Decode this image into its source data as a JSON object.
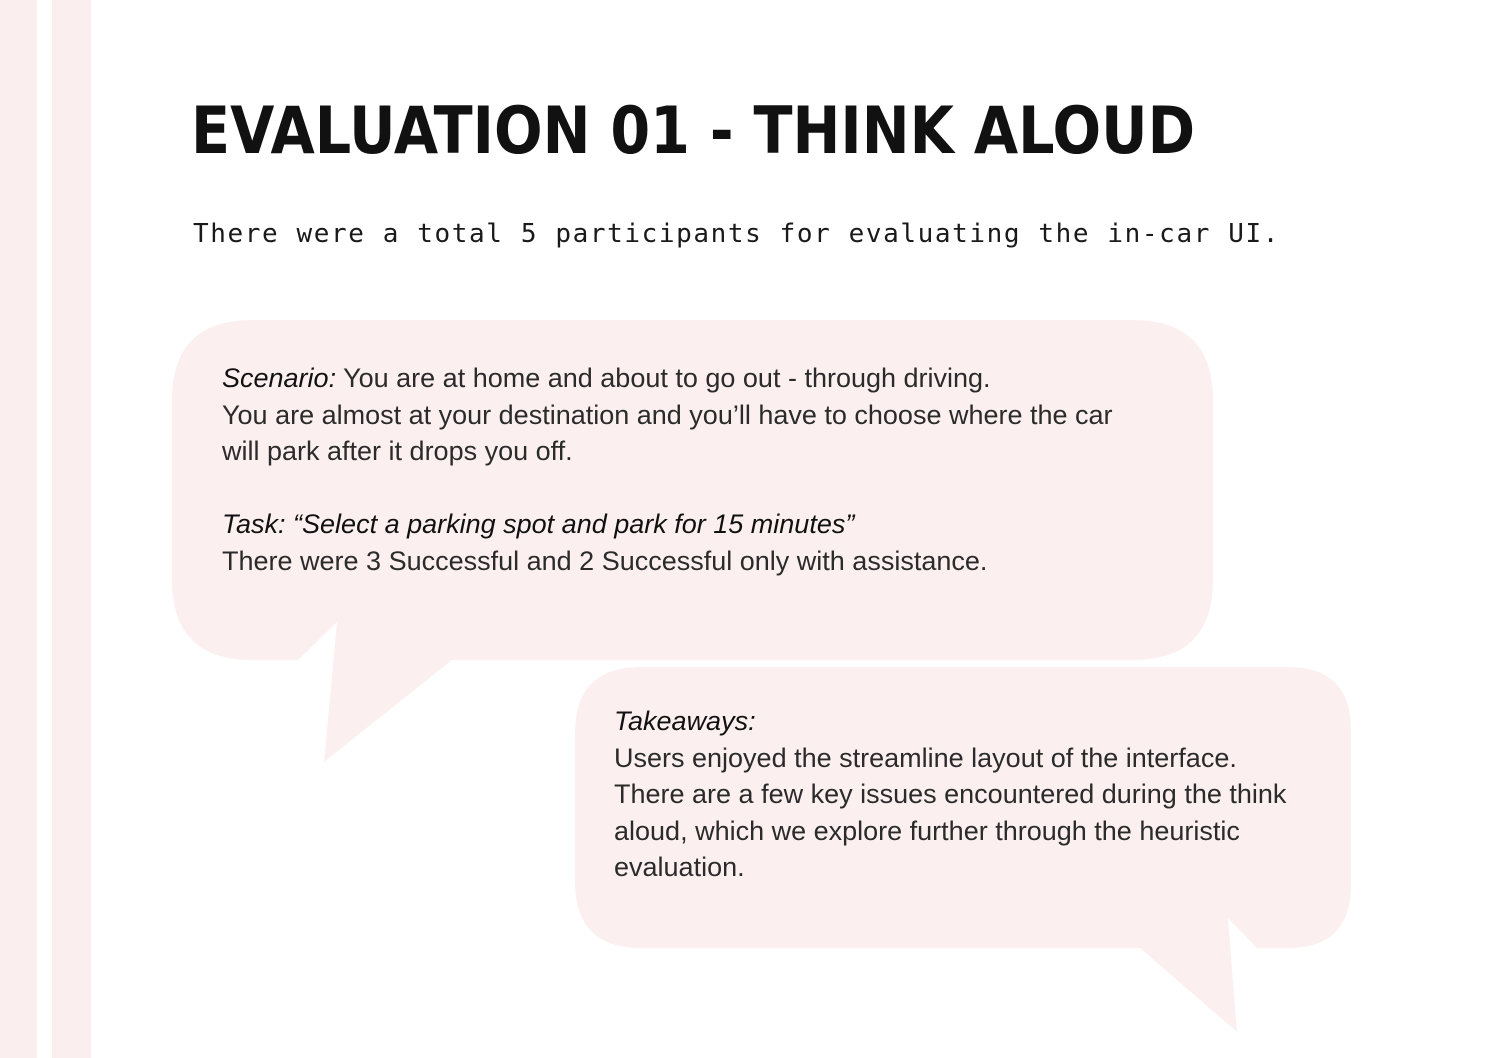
{
  "title": "EVALUATION 01 - THINK ALOUD",
  "subtitle": "There were a total 5 participants for evaluating the in-car UI.",
  "scenario_bubble": {
    "scenario_label": "Scenario:",
    "scenario_text": " You are at home and about to go out - through driving.",
    "line2": "You are almost at your destination and you’ll have to choose where the car",
    "line3": "will park after it drops you off.",
    "task_label": "Task: “Select a parking spot and park for 15 minutes”",
    "task_result": "There were 3 Successful and 2 Successful only with assistance."
  },
  "takeaways_bubble": {
    "label": "Takeaways:",
    "line1": "Users enjoyed the streamline layout of the interface.",
    "line2": "There are a few key issues encountered during the think",
    "line3": "aloud, which we explore further through the heuristic",
    "line4": "evaluation."
  },
  "colors": {
    "bubble_fill": "#fbf0ef",
    "stripe": "#fbeeee",
    "title": "#111111"
  }
}
